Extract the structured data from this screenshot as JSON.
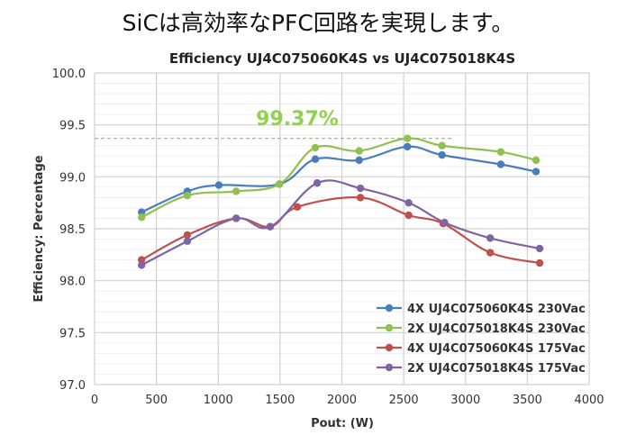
{
  "slide_heading": "SiCは高効率なPFC回路を実現します。",
  "chart_data": {
    "type": "line",
    "title": "Efficiency UJ4C075060K4S vs UJ4C075018K4S",
    "xlabel": "Pout: (W)",
    "ylabel": "Efficiency: Percentage",
    "xlim": [
      0,
      4000
    ],
    "ylim": [
      97.0,
      100.0
    ],
    "xticks": [
      "0",
      "500",
      "1000",
      "1500",
      "2000",
      "2500",
      "3000",
      "3500",
      "4000"
    ],
    "yticks": [
      "97.0",
      "97.5",
      "98.0",
      "98.5",
      "99.0",
      "99.5",
      "100.0"
    ],
    "grid": true,
    "legend_position": "bottom-right",
    "annotation": {
      "text": "99.37%",
      "y": 99.37,
      "color": "#92d050"
    },
    "series": [
      {
        "name": "4X UJ4C075060K4S 230Vac",
        "color": "#4a7ebb",
        "x": [
          380,
          750,
          1005,
          1495,
          1785,
          2140,
          2530,
          2810,
          3285,
          3570
        ],
        "y": [
          98.66,
          98.86,
          98.92,
          98.93,
          99.17,
          99.16,
          99.29,
          99.21,
          99.12,
          99.05
        ]
      },
      {
        "name": "2X UJ4C075018K4S 230Vac",
        "color": "#92c050",
        "x": [
          380,
          750,
          1145,
          1495,
          1785,
          2140,
          2530,
          2810,
          3285,
          3570
        ],
        "y": [
          98.61,
          98.82,
          98.86,
          98.93,
          99.28,
          99.25,
          99.37,
          99.3,
          99.24,
          99.16
        ]
      },
      {
        "name": "4X UJ4C075060K4S 175Vac",
        "color": "#c0504d",
        "x": [
          380,
          750,
          1145,
          1420,
          1640,
          2150,
          2540,
          2820,
          3200,
          3600
        ],
        "y": [
          98.2,
          98.44,
          98.6,
          98.52,
          98.71,
          98.8,
          98.63,
          98.55,
          98.27,
          98.17
        ]
      },
      {
        "name": "2X UJ4C075018K4S 175Vac",
        "color": "#8064a2",
        "x": [
          380,
          750,
          1145,
          1420,
          1800,
          2150,
          2540,
          2830,
          3200,
          3600
        ],
        "y": [
          98.15,
          98.38,
          98.6,
          98.52,
          98.94,
          98.89,
          98.75,
          98.56,
          98.41,
          98.31
        ]
      }
    ]
  }
}
